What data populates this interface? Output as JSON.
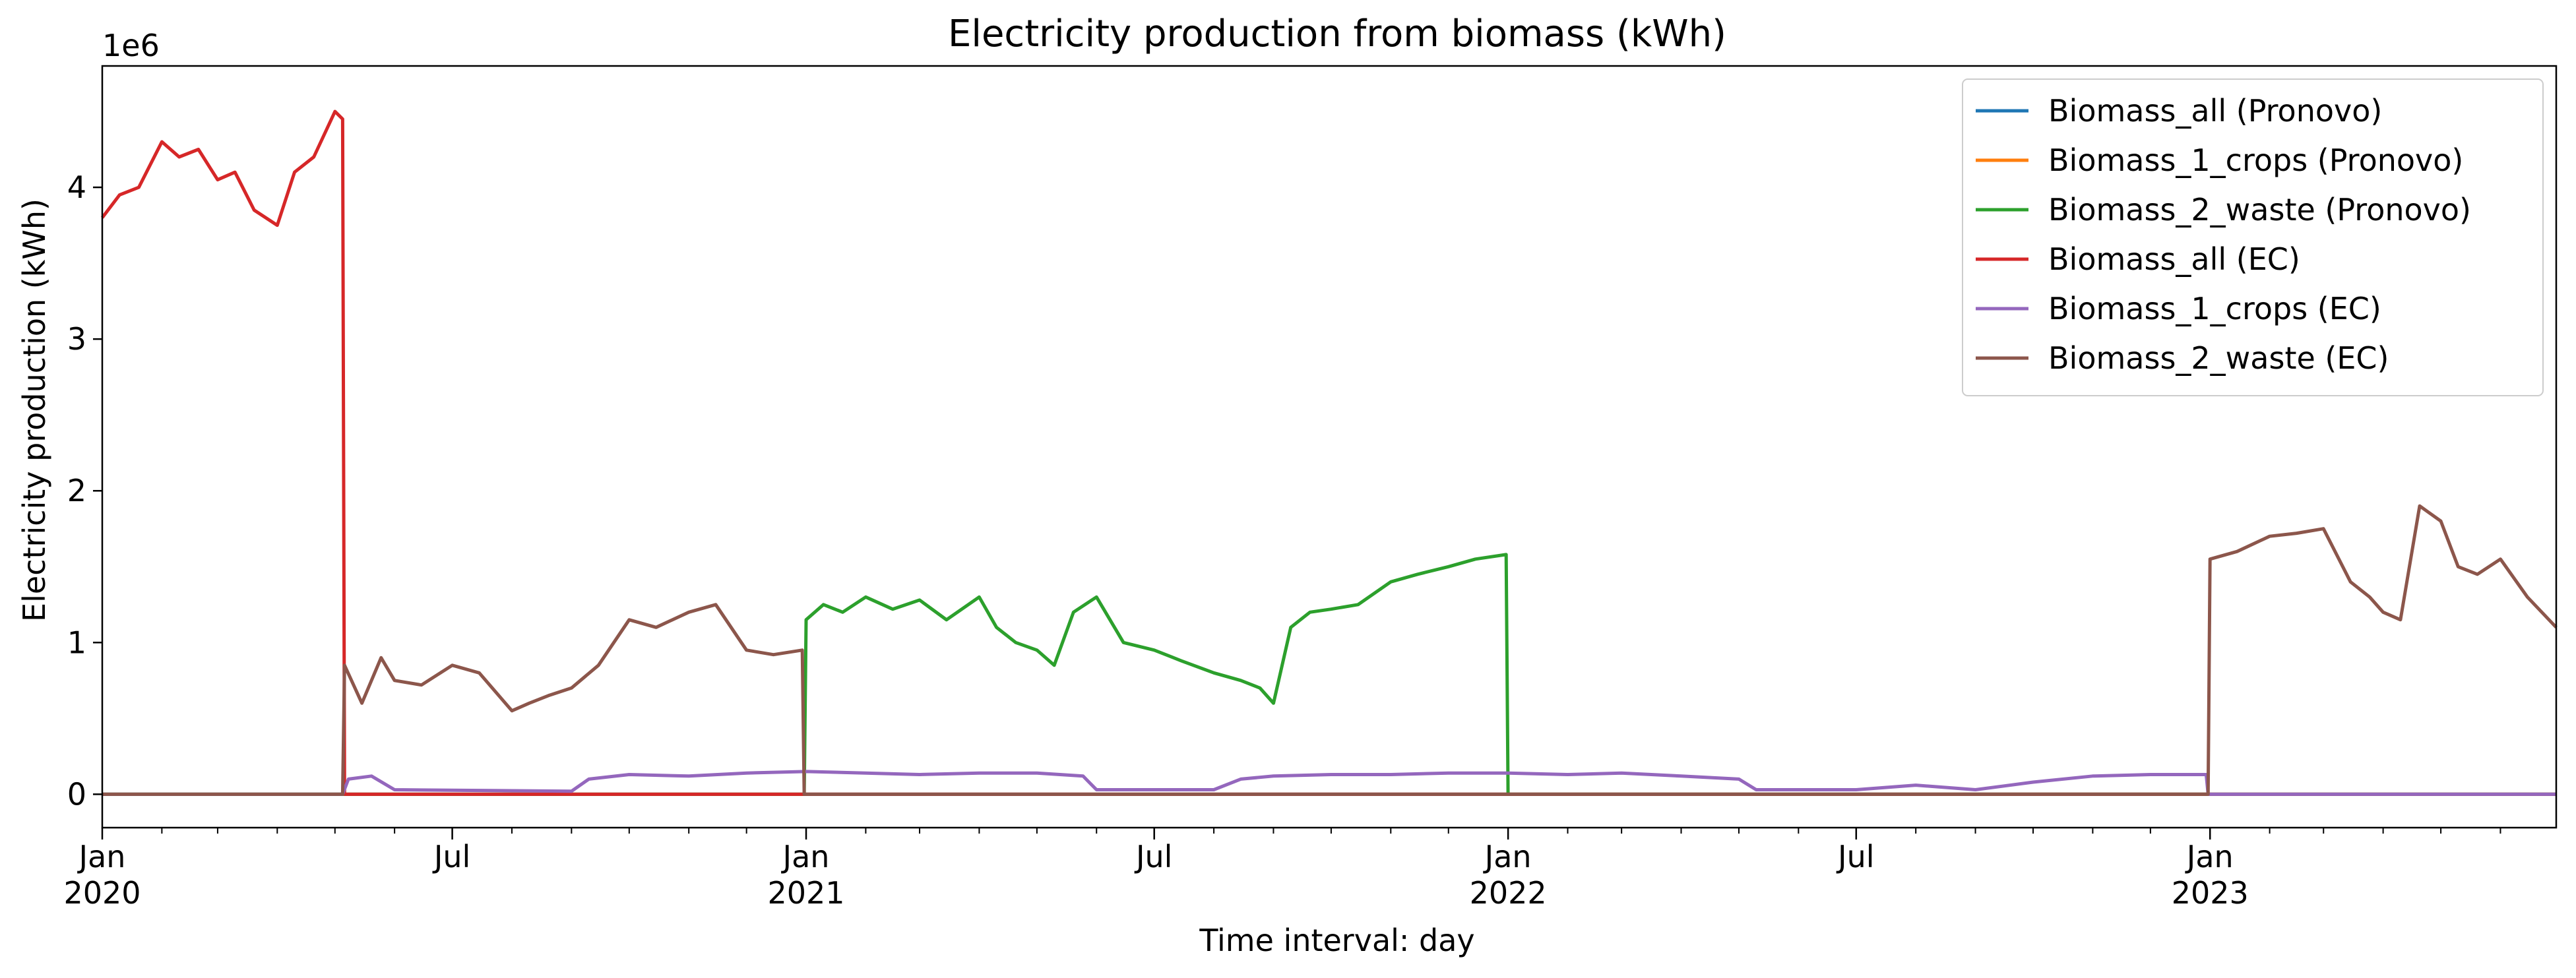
{
  "chart_data": {
    "type": "line",
    "title": "Electricity production from biomass (kWh)",
    "xlabel": "Time interval: day",
    "ylabel": "Electricity production (kWh)",
    "y_offset_label": "1e6",
    "y_multiplier": 1000000,
    "xlim": [
      "2020-01-01",
      "2023-06-30"
    ],
    "ylim": [
      -0.22,
      4.8
    ],
    "y_ticks": [
      0,
      1,
      2,
      3,
      4
    ],
    "x_major_ticks": [
      {
        "date": "2020-01-01",
        "line1": "Jan",
        "line2": "2020"
      },
      {
        "date": "2020-07-01",
        "line1": "Jul",
        "line2": ""
      },
      {
        "date": "2021-01-01",
        "line1": "Jan",
        "line2": "2021"
      },
      {
        "date": "2021-07-01",
        "line1": "Jul",
        "line2": ""
      },
      {
        "date": "2022-01-01",
        "line1": "Jan",
        "line2": "2022"
      },
      {
        "date": "2022-07-01",
        "line1": "Jul",
        "line2": ""
      },
      {
        "date": "2023-01-01",
        "line1": "Jan",
        "line2": "2023"
      }
    ],
    "x_minor_ticks": [
      "2020-02-01",
      "2020-03-01",
      "2020-04-01",
      "2020-05-01",
      "2020-06-01",
      "2020-08-01",
      "2020-09-01",
      "2020-10-01",
      "2020-11-01",
      "2020-12-01",
      "2021-02-01",
      "2021-03-01",
      "2021-04-01",
      "2021-05-01",
      "2021-06-01",
      "2021-08-01",
      "2021-09-01",
      "2021-10-01",
      "2021-11-01",
      "2021-12-01",
      "2022-02-01",
      "2022-03-01",
      "2022-04-01",
      "2022-05-01",
      "2022-06-01",
      "2022-08-01",
      "2022-09-01",
      "2022-10-01",
      "2022-11-01",
      "2022-12-01",
      "2023-02-01",
      "2023-03-01",
      "2023-04-01",
      "2023-05-01",
      "2023-06-01"
    ],
    "grid": false,
    "legend_position": "top-right",
    "series": [
      {
        "name": "Biomass_all (Pronovo)",
        "color": "#1f77b4",
        "x": [
          "2020-01-01",
          "2023-06-30"
        ],
        "y": [
          0.0,
          0.0
        ]
      },
      {
        "name": "Biomass_1_crops (Pronovo)",
        "color": "#ff7f0e",
        "x": [
          "2020-01-01",
          "2023-06-30"
        ],
        "y": [
          0.0,
          0.0
        ]
      },
      {
        "name": "Biomass_2_waste (Pronovo)",
        "color": "#2ca02c",
        "x": [
          "2020-01-01",
          "2020-12-31",
          "2021-01-01",
          "2021-01-10",
          "2021-01-20",
          "2021-02-01",
          "2021-02-15",
          "2021-03-01",
          "2021-03-15",
          "2021-04-01",
          "2021-04-10",
          "2021-04-20",
          "2021-05-01",
          "2021-05-10",
          "2021-05-20",
          "2021-06-01",
          "2021-06-15",
          "2021-07-01",
          "2021-07-15",
          "2021-08-01",
          "2021-08-15",
          "2021-08-25",
          "2021-09-01",
          "2021-09-10",
          "2021-09-20",
          "2021-10-01",
          "2021-10-15",
          "2021-11-01",
          "2021-11-15",
          "2021-12-01",
          "2021-12-15",
          "2021-12-31",
          "2022-01-01",
          "2023-06-30"
        ],
        "y": [
          0.0,
          0.0,
          1.15,
          1.25,
          1.2,
          1.3,
          1.22,
          1.28,
          1.15,
          1.3,
          1.1,
          1.0,
          0.95,
          0.85,
          1.2,
          1.3,
          1.0,
          0.95,
          0.88,
          0.8,
          0.75,
          0.7,
          0.6,
          1.1,
          1.2,
          1.22,
          1.25,
          1.4,
          1.45,
          1.5,
          1.55,
          1.58,
          0.0,
          0.0
        ]
      },
      {
        "name": "Biomass_all (EC)",
        "color": "#d62728",
        "x": [
          "2020-01-01",
          "2020-01-10",
          "2020-01-20",
          "2020-02-01",
          "2020-02-10",
          "2020-02-20",
          "2020-03-01",
          "2020-03-10",
          "2020-03-20",
          "2020-04-01",
          "2020-04-10",
          "2020-04-20",
          "2020-05-01",
          "2020-05-05",
          "2020-05-06",
          "2023-06-30"
        ],
        "y": [
          3.8,
          3.95,
          4.0,
          4.3,
          4.2,
          4.25,
          4.05,
          4.1,
          3.85,
          3.75,
          4.1,
          4.2,
          4.5,
          4.45,
          0.0,
          0.0
        ]
      },
      {
        "name": "Biomass_1_crops (EC)",
        "color": "#9467bd",
        "x": [
          "2020-01-01",
          "2020-05-05",
          "2020-05-08",
          "2020-05-20",
          "2020-06-01",
          "2020-09-01",
          "2020-09-10",
          "2020-10-01",
          "2020-11-01",
          "2020-12-01",
          "2021-01-01",
          "2021-02-01",
          "2021-03-01",
          "2021-04-01",
          "2021-05-01",
          "2021-05-25",
          "2021-06-01",
          "2021-08-01",
          "2021-08-15",
          "2021-09-01",
          "2021-10-01",
          "2021-11-01",
          "2021-12-01",
          "2022-01-01",
          "2022-02-01",
          "2022-03-01",
          "2022-04-01",
          "2022-05-01",
          "2022-05-10",
          "2022-07-01",
          "2022-08-01",
          "2022-09-01",
          "2022-10-01",
          "2022-11-01",
          "2022-12-01",
          "2022-12-30",
          "2022-12-31",
          "2023-06-30"
        ],
        "y": [
          0.0,
          0.0,
          0.1,
          0.12,
          0.03,
          0.02,
          0.1,
          0.13,
          0.12,
          0.14,
          0.15,
          0.14,
          0.13,
          0.14,
          0.14,
          0.12,
          0.03,
          0.03,
          0.1,
          0.12,
          0.13,
          0.13,
          0.14,
          0.14,
          0.13,
          0.14,
          0.12,
          0.1,
          0.03,
          0.03,
          0.06,
          0.03,
          0.08,
          0.12,
          0.13,
          0.13,
          0.0,
          0.0
        ]
      },
      {
        "name": "Biomass_2_waste (EC)",
        "color": "#8c564b",
        "x": [
          "2020-01-01",
          "2020-05-05",
          "2020-05-06",
          "2020-05-15",
          "2020-05-25",
          "2020-06-01",
          "2020-06-15",
          "2020-07-01",
          "2020-07-15",
          "2020-08-01",
          "2020-08-10",
          "2020-08-20",
          "2020-09-01",
          "2020-09-15",
          "2020-10-01",
          "2020-10-15",
          "2020-11-01",
          "2020-11-15",
          "2020-12-01",
          "2020-12-15",
          "2020-12-30",
          "2020-12-31",
          "2022-12-31",
          "2023-01-01",
          "2023-01-15",
          "2023-02-01",
          "2023-02-15",
          "2023-03-01",
          "2023-03-15",
          "2023-03-25",
          "2023-04-01",
          "2023-04-10",
          "2023-04-20",
          "2023-05-01",
          "2023-05-10",
          "2023-05-20",
          "2023-06-01",
          "2023-06-15",
          "2023-06-30"
        ],
        "y": [
          0.0,
          0.0,
          0.85,
          0.6,
          0.9,
          0.75,
          0.72,
          0.85,
          0.8,
          0.55,
          0.6,
          0.65,
          0.7,
          0.85,
          1.15,
          1.1,
          1.2,
          1.25,
          0.95,
          0.92,
          0.95,
          0.0,
          0.0,
          1.55,
          1.6,
          1.7,
          1.72,
          1.75,
          1.4,
          1.3,
          1.2,
          1.15,
          1.9,
          1.8,
          1.5,
          1.45,
          1.55,
          1.3,
          1.1
        ]
      }
    ]
  }
}
